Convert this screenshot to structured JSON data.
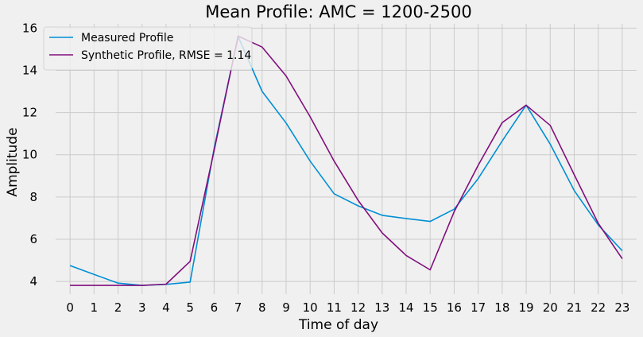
{
  "chart_data": {
    "type": "line",
    "title": "Mean Profile: AMC = 1200-2500",
    "xlabel": "Time of day",
    "ylabel": "Amplitude",
    "x": [
      0,
      1,
      2,
      3,
      4,
      5,
      6,
      7,
      8,
      9,
      10,
      11,
      12,
      13,
      14,
      15,
      16,
      17,
      18,
      19,
      20,
      21,
      22,
      23
    ],
    "xticks": [
      "0",
      "1",
      "2",
      "3",
      "4",
      "5",
      "6",
      "7",
      "8",
      "9",
      "10",
      "11",
      "12",
      "13",
      "14",
      "15",
      "16",
      "17",
      "18",
      "19",
      "20",
      "21",
      "22",
      "23"
    ],
    "yticks": [
      "4",
      "6",
      "8",
      "10",
      "12",
      "14",
      "16"
    ],
    "ylim": [
      3.4,
      16.2
    ],
    "xlim": [
      -0.6,
      23.6
    ],
    "grid": true,
    "legend_position": "top-left",
    "series": [
      {
        "name": "Measured Profile",
        "color": "#008fd5",
        "values": [
          4.75,
          4.33,
          3.92,
          3.81,
          3.86,
          3.97,
          10.3,
          15.6,
          13.0,
          11.5,
          9.7,
          8.15,
          7.58,
          7.13,
          6.98,
          6.84,
          7.42,
          8.87,
          10.65,
          12.35,
          10.5,
          8.3,
          6.67,
          5.45
        ]
      },
      {
        "name": "Synthetic Profile, RMSE = 1.14",
        "color": "#810f7c",
        "values": [
          3.81,
          3.81,
          3.81,
          3.81,
          3.87,
          4.95,
          10.2,
          15.62,
          15.1,
          13.73,
          11.8,
          9.7,
          7.84,
          6.3,
          5.23,
          4.55,
          7.3,
          9.5,
          11.52,
          12.35,
          11.39,
          9.05,
          6.75,
          5.07
        ]
      }
    ]
  }
}
